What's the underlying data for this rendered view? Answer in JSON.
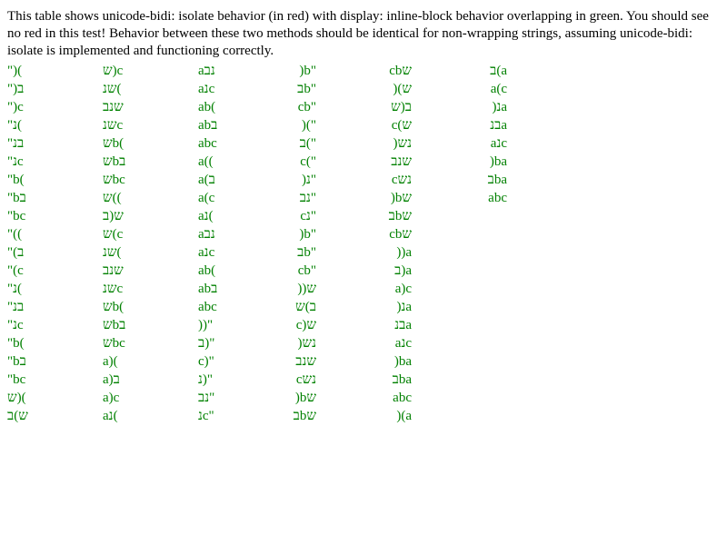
{
  "intro": "This table shows unicode-bidi: isolate behavior (in red) with display: inline-block behavior overlapping in green. You should see no red in this test! Behavior between these two methods should be identical for non-wrapping strings, assuming unicode-bidi: isolate is implemented and functioning correctly.",
  "colors": {
    "text": "#000000",
    "green": "#008000"
  },
  "columns": [
    [
      "\")(",
      "\")ב",
      "\")c",
      "\"נ(",
      "\"בנ",
      "\"נc",
      "\"b(",
      "\"bב",
      "\"bc",
      "\"((",
      "\"(ב",
      "\"(c",
      "\"נ(",
      "\"בנ",
      "\"נc",
      "\"b(",
      "\"bב",
      "\"bc",
      "ש)(",
      "ש)ב"
    ],
    [
      "ש)c",
      "שנ(",
      "שנב",
      "שנc",
      "שb(",
      "שbב",
      "שbc",
      "ש((",
      "ש(ב",
      "ש(c",
      "שנ(",
      "שנב",
      "שנc",
      "שb(",
      "שbב",
      "שbc",
      "a)(",
      "a)ב",
      "a)c",
      "aנ("
    ],
    [
      "aנב",
      "aנc",
      "ab(",
      "abב",
      "abc",
      "a((",
      "a(ב",
      "a(c",
      "aנ(",
      "aנב",
      "aנc",
      "ab(",
      "abב",
      "abc",
      "))\"",
      "ב)\"",
      "c)\"",
      "נ)\"",
      "נב\"",
      "נc\""
    ],
    [
      ")b\"",
      "בb\"",
      "cb\"",
      ")(\"",
      "ב(\"",
      "c(\"",
      ")נ\"",
      "נב\"",
      "cנ\"",
      ")b\"",
      "בb\"",
      "cb\"",
      "))ש",
      "ב)ש",
      "c)ש",
      ")נש",
      "שנב",
      "cנש",
      ")bש",
      "בbש"
    ],
    [
      "cbש",
      ")(ש",
      "ב(ש",
      "c(ש",
      ")נש",
      "שנב",
      "cנש",
      ")bש",
      "בbש",
      "cbש",
      "))a",
      "ב)a",
      "a)c",
      ")נa",
      "בנa",
      "aנc",
      ")ba",
      "בba",
      "abc",
      ")(a"
    ],
    [
      "ב(a",
      "a(c",
      ")נa",
      "בנa",
      "aנc",
      ")ba",
      "בba",
      "abc"
    ]
  ]
}
